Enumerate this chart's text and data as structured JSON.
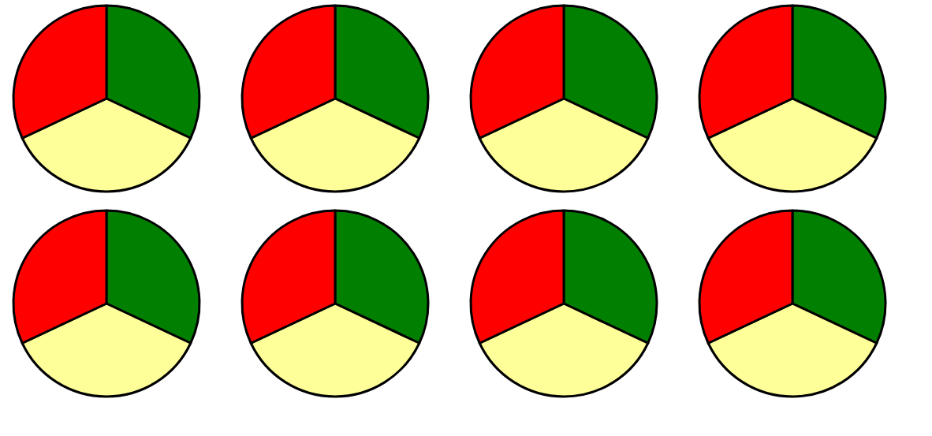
{
  "chart_data": [
    {
      "type": "pie",
      "categories": [
        null,
        null,
        null
      ],
      "values": [
        32,
        36,
        32
      ],
      "colors": [
        "#007f00",
        "#ffff99",
        "#ff0000"
      ]
    },
    {
      "type": "pie",
      "categories": [
        null,
        null,
        null
      ],
      "values": [
        32,
        36,
        32
      ],
      "colors": [
        "#007f00",
        "#ffff99",
        "#ff0000"
      ]
    },
    {
      "type": "pie",
      "categories": [
        null,
        null,
        null
      ],
      "values": [
        32,
        36,
        32
      ],
      "colors": [
        "#007f00",
        "#ffff99",
        "#ff0000"
      ]
    },
    {
      "type": "pie",
      "categories": [
        null,
        null,
        null
      ],
      "values": [
        32,
        36,
        32
      ],
      "colors": [
        "#007f00",
        "#ffff99",
        "#ff0000"
      ]
    },
    {
      "type": "pie",
      "categories": [
        null,
        null,
        null
      ],
      "values": [
        32,
        36,
        32
      ],
      "colors": [
        "#007f00",
        "#ffff99",
        "#ff0000"
      ]
    },
    {
      "type": "pie",
      "categories": [
        null,
        null,
        null
      ],
      "values": [
        32,
        36,
        32
      ],
      "colors": [
        "#007f00",
        "#ffff99",
        "#ff0000"
      ]
    },
    {
      "type": "pie",
      "categories": [
        null,
        null,
        null
      ],
      "values": [
        32,
        36,
        32
      ],
      "colors": [
        "#007f00",
        "#ffff99",
        "#ff0000"
      ]
    },
    {
      "type": "pie",
      "categories": [
        null,
        null,
        null
      ],
      "values": [
        32,
        36,
        32
      ],
      "colors": [
        "#007f00",
        "#ffff99",
        "#ff0000"
      ]
    }
  ]
}
